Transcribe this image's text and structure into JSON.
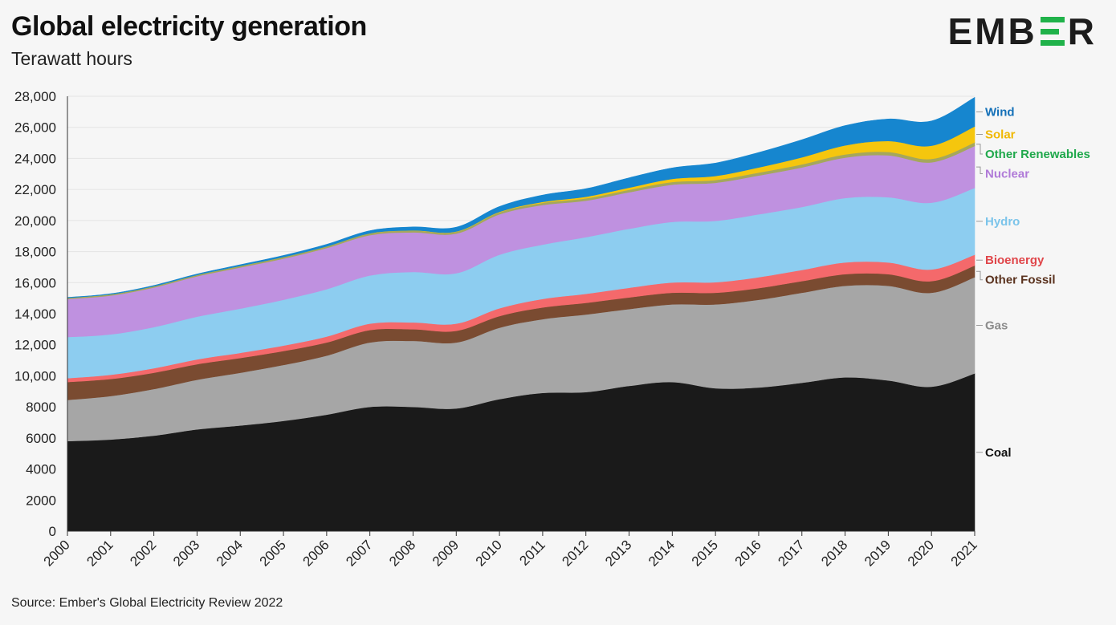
{
  "header": {
    "title": "Global electricity generation",
    "subtitle": "Terawatt hours"
  },
  "logo": {
    "text_left": "EMB",
    "text_right": "R",
    "accent_color": "#20b24a"
  },
  "footer": {
    "source": "Source: Ember's Global Electricity Review 2022"
  },
  "chart_data": {
    "type": "area",
    "stacked": true,
    "title": "Global electricity generation",
    "subtitle": "Terawatt hours",
    "xlabel": "",
    "ylabel": "",
    "ylim": [
      0,
      28000
    ],
    "yticks": [
      0,
      2000,
      4000,
      6000,
      8000,
      10000,
      12000,
      14000,
      16000,
      18000,
      20000,
      22000,
      24000,
      26000,
      28000
    ],
    "ytick_labels": [
      "0",
      "2000",
      "4000",
      "6000",
      "8000",
      "10,000",
      "12,000",
      "14,000",
      "16,000",
      "18,000",
      "20,000",
      "22,000",
      "24,000",
      "26,000",
      "28,000"
    ],
    "grid": true,
    "legend_placement": "right-end-labels",
    "x": [
      "2000",
      "2001",
      "2002",
      "2003",
      "2004",
      "2005",
      "2006",
      "2007",
      "2008",
      "2009",
      "2010",
      "2011",
      "2012",
      "2013",
      "2014",
      "2015",
      "2016",
      "2017",
      "2018",
      "2019",
      "2020",
      "2021"
    ],
    "series": [
      {
        "name": "Coal",
        "color": "#1a1a1a",
        "label_color": "#111111",
        "values": [
          5800,
          5900,
          6150,
          6550,
          6800,
          7100,
          7500,
          8000,
          8000,
          7900,
          8500,
          8900,
          8950,
          9350,
          9600,
          9200,
          9250,
          9550,
          9900,
          9700,
          9300,
          10150
        ]
      },
      {
        "name": "Gas",
        "color": "#a6a6a6",
        "label_color": "#8c8c8c",
        "values": [
          2650,
          2800,
          3000,
          3200,
          3400,
          3600,
          3800,
          4150,
          4250,
          4250,
          4600,
          4750,
          5000,
          4950,
          5000,
          5400,
          5650,
          5800,
          5900,
          6100,
          6050,
          6200
        ]
      },
      {
        "name": "Other Fossil",
        "color": "#7a4b31",
        "label_color": "#5a321e",
        "values": [
          1150,
          1100,
          1050,
          1000,
          950,
          900,
          850,
          800,
          750,
          750,
          750,
          750,
          750,
          750,
          750,
          750,
          750,
          750,
          750,
          750,
          750,
          750
        ]
      },
      {
        "name": "Bioenergy",
        "color": "#f4696b",
        "label_color": "#e0464a",
        "values": [
          250,
          270,
          290,
          310,
          330,
          350,
          380,
          410,
          440,
          460,
          500,
          550,
          580,
          620,
          660,
          680,
          700,
          720,
          750,
          750,
          750,
          700
        ]
      },
      {
        "name": "Hydro",
        "color": "#8dcdf0",
        "label_color": "#7bc4ea",
        "values": [
          2650,
          2600,
          2650,
          2750,
          2850,
          2950,
          3050,
          3100,
          3250,
          3250,
          3450,
          3500,
          3650,
          3800,
          3900,
          3950,
          4050,
          4050,
          4150,
          4200,
          4300,
          4300
        ]
      },
      {
        "name": "Nuclear",
        "color": "#bf91e0",
        "label_color": "#b07ad8",
        "values": [
          2450,
          2500,
          2550,
          2600,
          2650,
          2650,
          2650,
          2600,
          2550,
          2550,
          2600,
          2550,
          2350,
          2350,
          2400,
          2450,
          2500,
          2550,
          2600,
          2700,
          2600,
          2700
        ]
      },
      {
        "name": "Other Renewables",
        "color": "#a5a75c",
        "label_color": "#1fa84b",
        "values": [
          70,
          75,
          80,
          85,
          90,
          95,
          100,
          110,
          115,
          120,
          130,
          140,
          150,
          160,
          170,
          180,
          190,
          200,
          210,
          220,
          220,
          230
        ]
      },
      {
        "name": "Solar",
        "color": "#f5c60e",
        "label_color": "#f0b800",
        "values": [
          1,
          2,
          2,
          3,
          3,
          4,
          6,
          7,
          12,
          20,
          30,
          60,
          100,
          140,
          200,
          260,
          330,
          450,
          580,
          700,
          850,
          1030
        ]
      },
      {
        "name": "Wind",
        "color": "#1686cf",
        "label_color": "#1470b8",
        "values": [
          30,
          40,
          50,
          60,
          80,
          100,
          130,
          170,
          220,
          270,
          340,
          440,
          520,
          630,
          710,
          830,
          960,
          1130,
          1270,
          1420,
          1590,
          1870
        ]
      }
    ]
  }
}
